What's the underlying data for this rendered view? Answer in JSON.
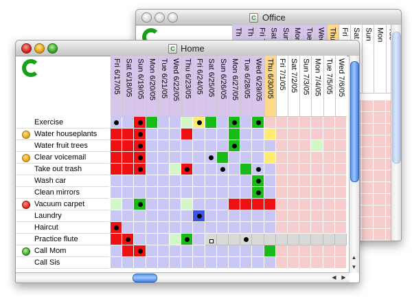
{
  "colors": {
    "lavender": "#c9c8f5",
    "pink": "#f7cccc",
    "red": "#ef1111",
    "green": "#18bb18",
    "light_green": "#d4f7c8",
    "yellow": "#ffea72",
    "blue": "#3e54e6",
    "purple_header": "#d7c5eb",
    "orange_header": "#ffd98a",
    "gray_band": "#d9d9d9"
  },
  "office_window": {
    "title": "Office",
    "dates": [
      "Th",
      "Th",
      "Fri 7/1/05",
      "Sat 7/2/05",
      "Sun 7/3/05",
      "Mon 7/4/05",
      "Tue 7/5/05",
      "Wed 7/6/05",
      "Thu",
      "Fri",
      "Sat",
      "Sun",
      "Mon",
      "Tue",
      "Wed",
      "Thu",
      "Fri 7/1/05",
      "Sat 7/2/05",
      "Sun 7/3/05",
      "Mon 7/4/05",
      "Tue 7/5/05"
    ]
  },
  "home_window": {
    "title": "Home",
    "dates": [
      "Fri 6/17/05",
      "Sat 6/18/05",
      "Sun 6/19/05",
      "Mon 6/20/05",
      "Tue 6/21/05",
      "Wed 6/22/05",
      "Thu 6/23/05",
      "Fri 6/24/05",
      "Sat 6/25/05",
      "Sun 6/26/05",
      "Mon 6/27/05",
      "Tue 6/28/05",
      "Wed 6/29/05",
      "Thu 6/30/05",
      "Fri 7/1/05",
      "Sat 7/2/05",
      "Sun 7/3/05",
      "Mon 7/4/05",
      "Tue 7/5/05",
      "Wed 7/6/05"
    ],
    "today_index": 13,
    "tasks": [
      {
        "name": "Exercise",
        "status": "none"
      },
      {
        "name": "Water houseplants",
        "status": "yellow"
      },
      {
        "name": "Water fruit trees",
        "status": "none"
      },
      {
        "name": "Clear voicemail",
        "status": "yellow"
      },
      {
        "name": "Take out trash",
        "status": "none"
      },
      {
        "name": "Wash car",
        "status": "none"
      },
      {
        "name": "Clean mirrors",
        "status": "none"
      },
      {
        "name": "Vacuum carpet",
        "status": "red"
      },
      {
        "name": "Laundry",
        "status": "none"
      },
      {
        "name": "Haircut",
        "status": "none"
      },
      {
        "name": "Practice flute",
        "status": "none"
      },
      {
        "name": "Call Mom",
        "status": "green"
      },
      {
        "name": "Call Sis",
        "status": "none"
      }
    ],
    "grid": [
      "LL0DLLFYDLDLDPPPPPPP",
      "RRRLLLRLLLDLLYPPPPPP",
      "RRRLLLLLLLDLLLPPPFPP",
      "RRRLLLLLLDLLLYPPPPPP",
      "RRRLLFRLLLLDLLPPPPPP",
      "LLLLLLLLLLLLDLPPPPPP",
      "LLLLLLLLLLLLDLPPPPPP",
      "FLDLLLFLLLRRRRPPPPPP",
      "LLLLLLLULLLLLLPPPPPP",
      "RLLLLLLLLLLLLLPPPPPP",
      "RRLLLFDLWWWWWWWWWWWW",
      "LRRLLLLLLLLLLGPPPPPP",
      "LLLLLLLLLLLLLLPPPPPP"
    ],
    "grid_legend": "L=lavender, P=pink, R=red, F=light green, G=green, Y=yellow, U=blue, W=gray band, D=green with done dot, 0=red with done dot",
    "dots": [
      [
        0,
        0
      ],
      [
        0,
        2
      ],
      [
        0,
        7
      ],
      [
        0,
        10
      ],
      [
        0,
        12
      ],
      [
        1,
        2
      ],
      [
        2,
        2
      ],
      [
        2,
        10
      ],
      [
        3,
        2
      ],
      [
        3,
        8
      ],
      [
        4,
        2
      ],
      [
        4,
        6
      ],
      [
        4,
        9
      ],
      [
        4,
        12
      ],
      [
        5,
        12
      ],
      [
        6,
        12
      ],
      [
        7,
        2
      ],
      [
        8,
        7
      ],
      [
        9,
        0
      ],
      [
        10,
        1
      ],
      [
        10,
        6
      ],
      [
        10,
        11
      ],
      [
        11,
        2
      ]
    ]
  }
}
